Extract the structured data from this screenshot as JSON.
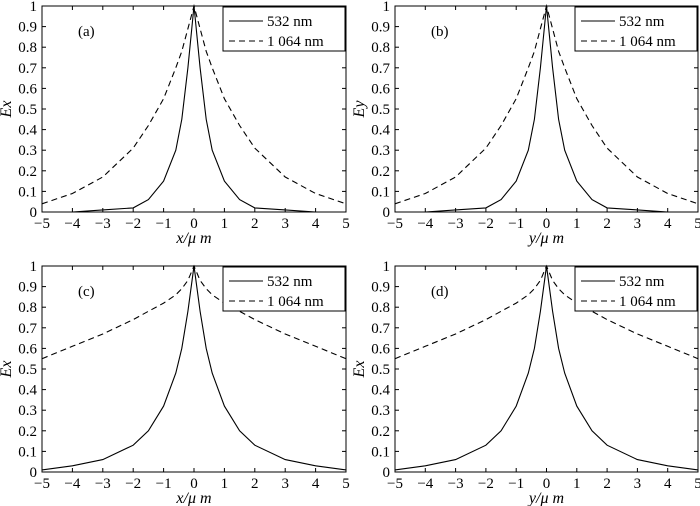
{
  "chart_data": [
    {
      "type": "line",
      "panel_label": "(a)",
      "xlabel": "x/μ m",
      "ylabel": "Ex",
      "xlim": [
        -5,
        5
      ],
      "ylim": [
        0,
        1
      ],
      "xticks": [
        "−5",
        "−4",
        "−3",
        "−2",
        "−1",
        "0",
        "1",
        "2",
        "3",
        "4",
        "5"
      ],
      "yticks": [
        "0",
        "0.1",
        "0.2",
        "0.3",
        "0.4",
        "0.5",
        "0.6",
        "0.7",
        "0.8",
        "0.9",
        "1"
      ],
      "legend_position": "top-right",
      "grid": false,
      "series": [
        {
          "name": "532 nm",
          "style": "solid",
          "x": [
            -5,
            -4,
            -3,
            -2,
            -1.5,
            -1,
            -0.6,
            -0.4,
            -0.2,
            0,
            0.2,
            0.4,
            0.6,
            1,
            1.5,
            2,
            3,
            4,
            5
          ],
          "y": [
            0,
            0,
            0.01,
            0.02,
            0.06,
            0.15,
            0.3,
            0.45,
            0.7,
            1.0,
            0.7,
            0.45,
            0.3,
            0.15,
            0.06,
            0.02,
            0.01,
            0,
            0
          ]
        },
        {
          "name": "1 064 nm",
          "style": "dashed",
          "x": [
            -5,
            -4,
            -3,
            -2,
            -1.5,
            -1,
            -0.6,
            -0.4,
            -0.2,
            0,
            0.2,
            0.4,
            0.6,
            1,
            1.5,
            2,
            3,
            4,
            5
          ],
          "y": [
            0.04,
            0.09,
            0.17,
            0.31,
            0.42,
            0.55,
            0.7,
            0.78,
            0.89,
            1.0,
            0.89,
            0.78,
            0.7,
            0.55,
            0.42,
            0.31,
            0.17,
            0.09,
            0.04
          ]
        }
      ]
    },
    {
      "type": "line",
      "panel_label": "(b)",
      "xlabel": "y/μ m",
      "ylabel": "Ey",
      "xlim": [
        -5,
        5
      ],
      "ylim": [
        0,
        1
      ],
      "xticks": [
        "−5",
        "−4",
        "−3",
        "−2",
        "−1",
        "0",
        "1",
        "2",
        "3",
        "4",
        "5"
      ],
      "yticks": [
        "0",
        "0.1",
        "0.2",
        "0.3",
        "0.4",
        "0.5",
        "0.6",
        "0.7",
        "0.8",
        "0.9",
        "1"
      ],
      "legend_position": "top-right",
      "grid": false,
      "series": [
        {
          "name": "532 nm",
          "style": "solid",
          "x": [
            -5,
            -4,
            -3,
            -2,
            -1.5,
            -1,
            -0.6,
            -0.4,
            -0.2,
            0,
            0.2,
            0.4,
            0.6,
            1,
            1.5,
            2,
            3,
            4,
            5
          ],
          "y": [
            0,
            0,
            0.01,
            0.02,
            0.06,
            0.15,
            0.3,
            0.45,
            0.7,
            1.0,
            0.7,
            0.45,
            0.3,
            0.15,
            0.06,
            0.02,
            0.01,
            0,
            0
          ]
        },
        {
          "name": "1 064 nm",
          "style": "dashed",
          "x": [
            -5,
            -4,
            -3,
            -2,
            -1.5,
            -1,
            -0.6,
            -0.4,
            -0.2,
            0,
            0.2,
            0.4,
            0.6,
            1,
            1.5,
            2,
            3,
            4,
            5
          ],
          "y": [
            0.04,
            0.09,
            0.17,
            0.31,
            0.42,
            0.55,
            0.7,
            0.78,
            0.89,
            1.0,
            0.89,
            0.78,
            0.7,
            0.55,
            0.42,
            0.31,
            0.17,
            0.09,
            0.04
          ]
        }
      ]
    },
    {
      "type": "line",
      "panel_label": "(c)",
      "xlabel": "x/μ m",
      "ylabel": "Ex",
      "xlim": [
        -5,
        5
      ],
      "ylim": [
        0,
        1
      ],
      "xticks": [
        "−5",
        "−4",
        "−3",
        "−2",
        "−1",
        "0",
        "1",
        "2",
        "3",
        "4",
        "5"
      ],
      "yticks": [
        "0",
        "0.1",
        "0.2",
        "0.3",
        "0.4",
        "0.5",
        "0.6",
        "0.7",
        "0.8",
        "0.9",
        "1"
      ],
      "legend_position": "top-right",
      "grid": false,
      "series": [
        {
          "name": "532 nm",
          "style": "solid",
          "x": [
            -5,
            -4,
            -3,
            -2,
            -1.5,
            -1,
            -0.6,
            -0.4,
            -0.2,
            0,
            0.2,
            0.4,
            0.6,
            1,
            1.5,
            2,
            3,
            4,
            5
          ],
          "y": [
            0.01,
            0.03,
            0.06,
            0.13,
            0.2,
            0.32,
            0.48,
            0.6,
            0.78,
            1.0,
            0.78,
            0.6,
            0.48,
            0.32,
            0.2,
            0.13,
            0.06,
            0.03,
            0.01
          ]
        },
        {
          "name": "1 064 nm",
          "style": "dashed",
          "x": [
            -5,
            -4,
            -3,
            -2,
            -1.5,
            -1,
            -0.6,
            -0.4,
            -0.2,
            0,
            0.2,
            0.4,
            0.6,
            1,
            1.5,
            2,
            3,
            4,
            5
          ],
          "y": [
            0.55,
            0.61,
            0.67,
            0.74,
            0.78,
            0.82,
            0.86,
            0.89,
            0.93,
            1.0,
            0.93,
            0.89,
            0.86,
            0.82,
            0.78,
            0.74,
            0.67,
            0.61,
            0.55
          ]
        }
      ]
    },
    {
      "type": "line",
      "panel_label": "(d)",
      "xlabel": "y/μ m",
      "ylabel": "Ex",
      "xlim": [
        -5,
        5
      ],
      "ylim": [
        0,
        1
      ],
      "xticks": [
        "−5",
        "−4",
        "−3",
        "−2",
        "−1",
        "0",
        "1",
        "2",
        "3",
        "4",
        "5"
      ],
      "yticks": [
        "0",
        "0.1",
        "0.2",
        "0.3",
        "0.4",
        "0.5",
        "0.6",
        "0.7",
        "0.8",
        "0.9",
        "1"
      ],
      "legend_position": "top-right",
      "grid": false,
      "series": [
        {
          "name": "532 nm",
          "style": "solid",
          "x": [
            -5,
            -4,
            -3,
            -2,
            -1.5,
            -1,
            -0.6,
            -0.4,
            -0.2,
            0,
            0.2,
            0.4,
            0.6,
            1,
            1.5,
            2,
            3,
            4,
            5
          ],
          "y": [
            0.01,
            0.03,
            0.06,
            0.13,
            0.2,
            0.32,
            0.48,
            0.6,
            0.78,
            1.0,
            0.78,
            0.6,
            0.48,
            0.32,
            0.2,
            0.13,
            0.06,
            0.03,
            0.01
          ]
        },
        {
          "name": "1 064 nm",
          "style": "dashed",
          "x": [
            -5,
            -4,
            -3,
            -2,
            -1.5,
            -1,
            -0.6,
            -0.4,
            -0.2,
            0,
            0.2,
            0.4,
            0.6,
            1,
            1.5,
            2,
            3,
            4,
            5
          ],
          "y": [
            0.55,
            0.61,
            0.67,
            0.74,
            0.78,
            0.82,
            0.86,
            0.89,
            0.93,
            1.0,
            0.93,
            0.89,
            0.86,
            0.82,
            0.78,
            0.74,
            0.67,
            0.61,
            0.55
          ]
        }
      ]
    }
  ]
}
